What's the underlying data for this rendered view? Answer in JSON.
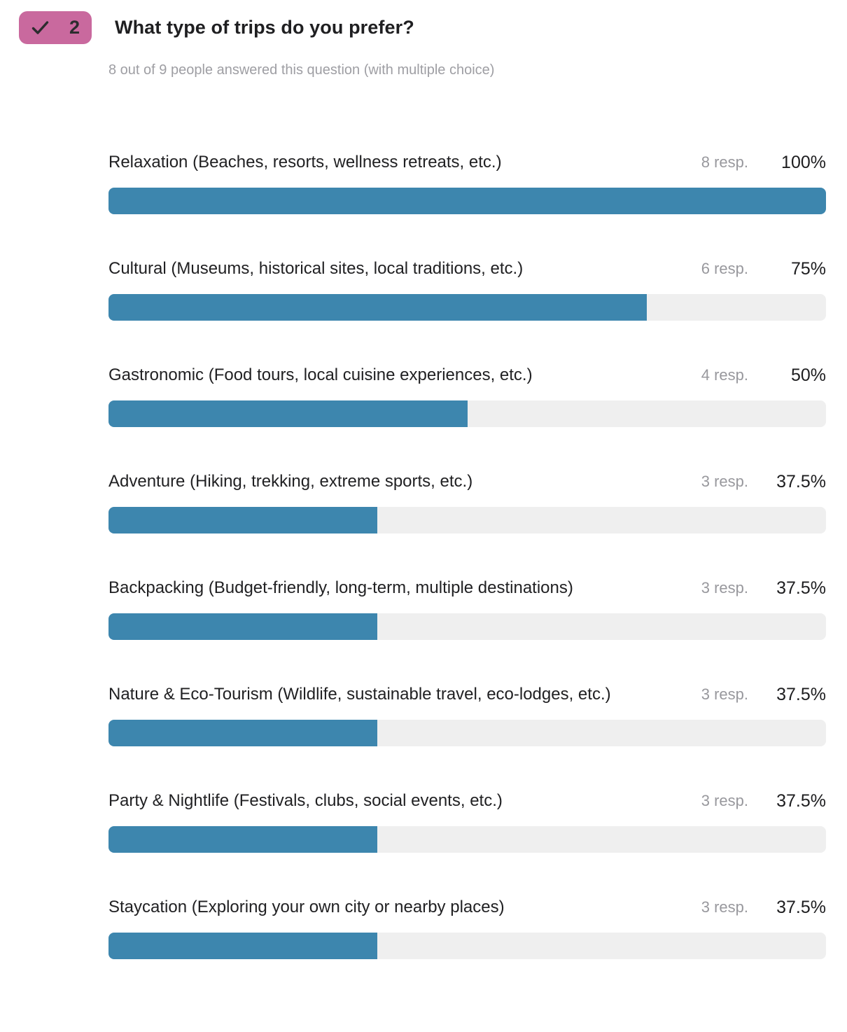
{
  "colors": {
    "bar_fill": "#3d86ae",
    "bar_track": "#efefef",
    "badge_bg": "#c9699e",
    "badge_text": "#2c2c2e",
    "title_text": "#1f1f21",
    "subtitle_text": "#9e9ea3",
    "resp_text": "#98989d",
    "percent_text": "#1d1d1f"
  },
  "header": {
    "badge_number": "2",
    "badge_icon": "checkmark",
    "title": "What type of trips do you prefer?",
    "subtitle": "8 out of 9 people answered this question (with multiple choice)"
  },
  "chart_data": {
    "type": "bar",
    "orientation": "horizontal",
    "title": "What type of trips do you prefer?",
    "subtitle": "8 out of 9 people answered this question (with multiple choice)",
    "question_number": 2,
    "answered": 8,
    "total_people": 9,
    "multiple_choice": true,
    "value_unit": "percent",
    "xlim": [
      0,
      100
    ],
    "grid": false,
    "legend": "none",
    "categories": [
      "Relaxation (Beaches, resorts, wellness retreats, etc.)",
      "Cultural (Museums, historical sites, local traditions, etc.)",
      "Gastronomic (Food tours, local cuisine experiences, etc.)",
      "Adventure (Hiking, trekking, extreme sports, etc.)",
      "Backpacking (Budget-friendly, long-term, multiple destinations)",
      "Nature & Eco-Tourism (Wildlife, sustainable travel, eco-lodges, etc.)",
      "Party & Nightlife (Festivals, clubs, social events, etc.)",
      "Staycation (Exploring your own city or nearby places)"
    ],
    "values": [
      100,
      75,
      50,
      37.5,
      37.5,
      37.5,
      37.5,
      37.5
    ],
    "responses": [
      8,
      6,
      4,
      3,
      3,
      3,
      3,
      3
    ],
    "resp_labels": [
      "8 resp.",
      "6 resp.",
      "4 resp.",
      "3 resp.",
      "3 resp.",
      "3 resp.",
      "3 resp.",
      "3 resp."
    ],
    "percent_labels": [
      "100%",
      "75%",
      "50%",
      "37.5%",
      "37.5%",
      "37.5%",
      "37.5%",
      "37.5%"
    ]
  }
}
